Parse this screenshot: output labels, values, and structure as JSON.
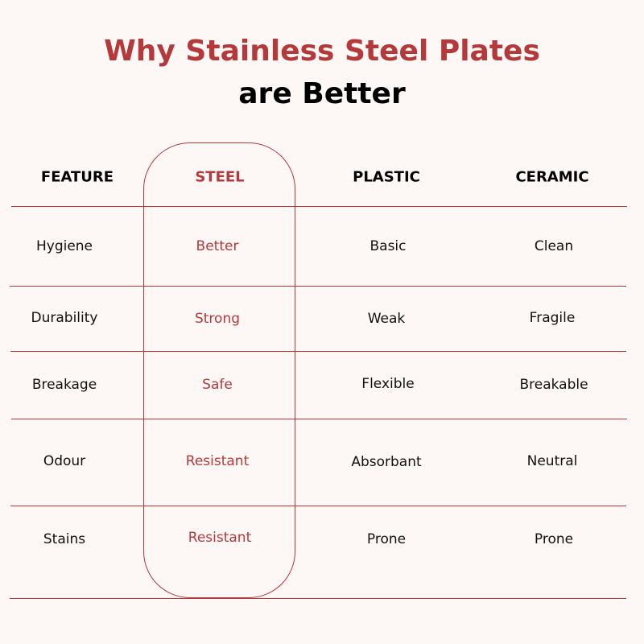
{
  "title": {
    "line1": "Why Stainless Steel Plates",
    "line2": "are Better"
  },
  "table": {
    "headers": [
      "FEATURE",
      "STEEL",
      "PLASTIC",
      "CERAMIC"
    ],
    "rows": [
      [
        "Hygiene",
        "Better",
        "Basic",
        "Clean"
      ],
      [
        "Durability",
        "Strong",
        "Weak",
        "Fragile"
      ],
      [
        "Breakage",
        "Safe",
        "Flexible",
        "Breakable"
      ],
      [
        "Odour",
        "Resistant",
        "Absorbant",
        "Neutral"
      ],
      [
        "Stains",
        "Resistant",
        "Prone",
        "Prone"
      ]
    ]
  },
  "colors": {
    "accent": "#b5383b",
    "background": "#fdf8f5",
    "text": "#000000"
  }
}
